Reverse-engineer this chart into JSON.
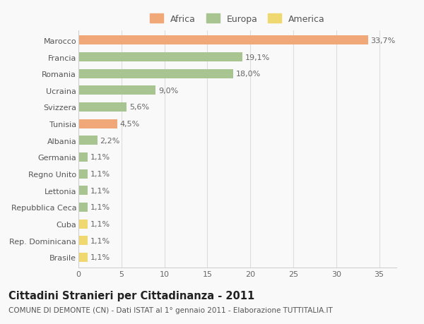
{
  "categories": [
    "Marocco",
    "Francia",
    "Romania",
    "Ucraina",
    "Svizzera",
    "Tunisia",
    "Albania",
    "Germania",
    "Regno Unito",
    "Lettonia",
    "Repubblica Ceca",
    "Cuba",
    "Rep. Dominicana",
    "Brasile"
  ],
  "values": [
    33.7,
    19.1,
    18.0,
    9.0,
    5.6,
    4.5,
    2.2,
    1.1,
    1.1,
    1.1,
    1.1,
    1.1,
    1.1,
    1.1
  ],
  "labels": [
    "33,7%",
    "19,1%",
    "18,0%",
    "9,0%",
    "5,6%",
    "4,5%",
    "2,2%",
    "1,1%",
    "1,1%",
    "1,1%",
    "1,1%",
    "1,1%",
    "1,1%",
    "1,1%"
  ],
  "colors": [
    "#F0A878",
    "#A8C490",
    "#A8C490",
    "#A8C490",
    "#A8C490",
    "#F0A878",
    "#A8C490",
    "#A8C490",
    "#A8C490",
    "#A8C490",
    "#A8C490",
    "#F0D870",
    "#F0D870",
    "#F0D870"
  ],
  "legend": [
    {
      "label": "Africa",
      "color": "#F0A878"
    },
    {
      "label": "Europa",
      "color": "#A8C490"
    },
    {
      "label": "America",
      "color": "#F0D870"
    }
  ],
  "xlim": [
    0,
    37
  ],
  "xticks": [
    0,
    5,
    10,
    15,
    20,
    25,
    30,
    35
  ],
  "title": "Cittadini Stranieri per Cittadinanza - 2011",
  "subtitle": "COMUNE DI DEMONTE (CN) - Dati ISTAT al 1° gennaio 2011 - Elaborazione TUTTITALIA.IT",
  "background_color": "#f9f9f9",
  "bar_height": 0.55,
  "label_fontsize": 8,
  "tick_fontsize": 8,
  "title_fontsize": 10.5,
  "subtitle_fontsize": 7.5,
  "legend_fontsize": 9
}
